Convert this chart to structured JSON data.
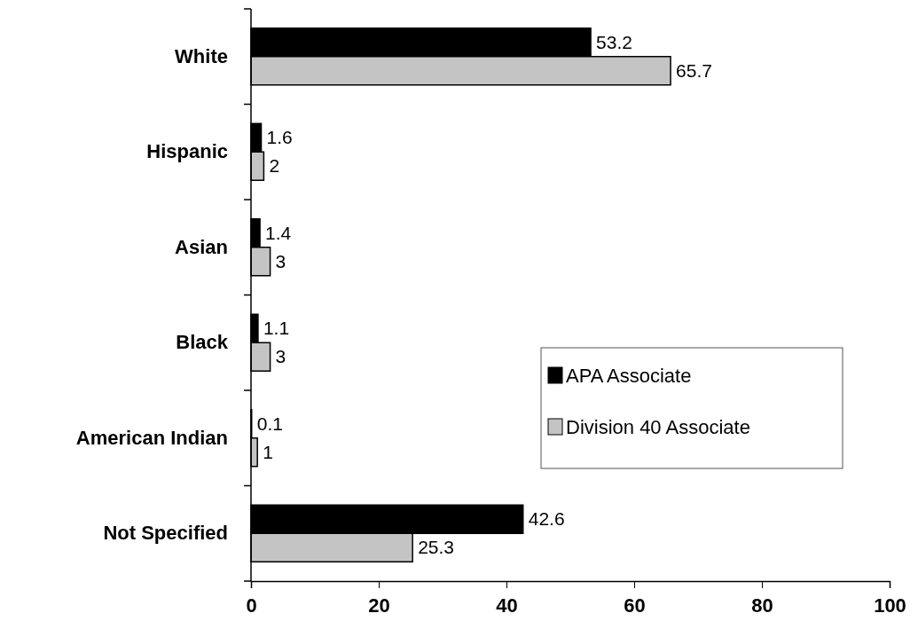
{
  "chart_data": {
    "type": "bar",
    "orientation": "horizontal",
    "categories": [
      "White",
      "Hispanic",
      "Asian",
      "Black",
      "American Indian",
      "Not Specified"
    ],
    "series": [
      {
        "name": "APA Associate",
        "color": "#000000",
        "values": [
          53.2,
          1.6,
          1.4,
          1.1,
          0.1,
          42.6
        ]
      },
      {
        "name": "Division 40 Associate",
        "color": "#c4c4c4",
        "values": [
          65.7,
          2,
          3,
          3,
          1,
          25.3
        ]
      }
    ],
    "xlim": [
      0,
      100
    ],
    "xticks": [
      0,
      20,
      40,
      60,
      80,
      100
    ],
    "data_labels": true,
    "legend": "right",
    "grid": false
  }
}
